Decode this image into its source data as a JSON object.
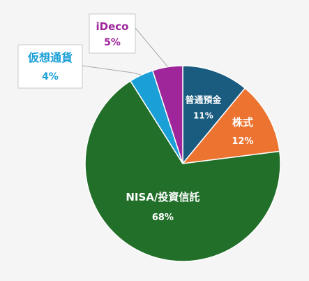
{
  "chart_data": {
    "type": "pie",
    "title": "",
    "start_angle_deg": 0,
    "direction": "clockwise",
    "slices": [
      {
        "label": "普通預金",
        "value": 11,
        "value_label": "11%",
        "color": "#1a5b80",
        "label_color": "#ffffff"
      },
      {
        "label": "株式",
        "value": 12,
        "value_label": "12%",
        "color": "#ec7330",
        "label_color": "#ffffff"
      },
      {
        "label": "NISA/投資信託",
        "value": 68,
        "value_label": "68%",
        "color": "#226f2a",
        "label_color": "#ffffff"
      },
      {
        "label": "仮想通貨",
        "value": 4,
        "value_label": "4%",
        "color": "#1aa0d6",
        "label_color": "#1a9fd6"
      },
      {
        "label": "iDeco",
        "value": 5,
        "value_label": "5%",
        "color": "#9e259a",
        "label_color": "#9e259a"
      }
    ],
    "legend": "none"
  }
}
